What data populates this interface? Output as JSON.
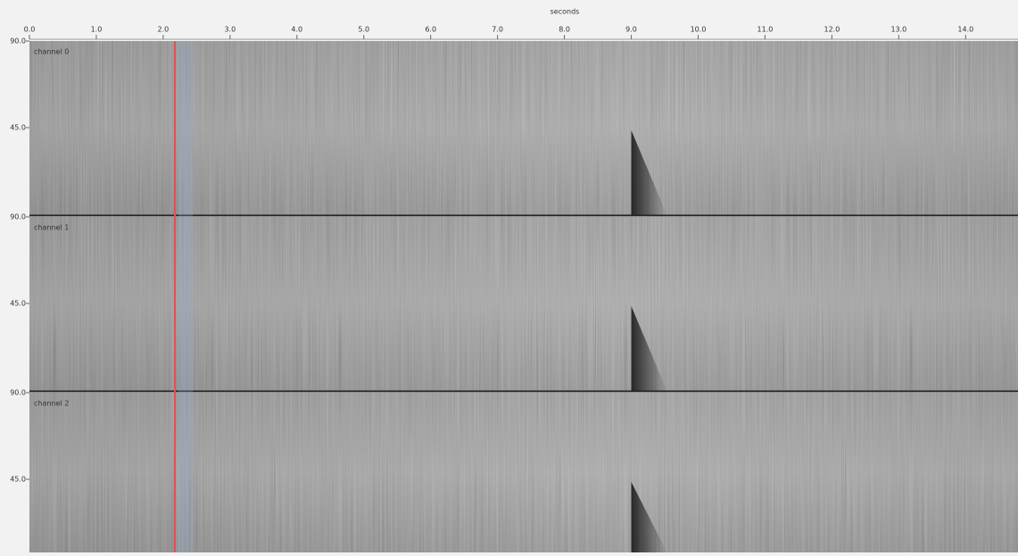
{
  "axis": {
    "title": "seconds",
    "ticks": [
      "0.0",
      "1.0",
      "2.0",
      "3.0",
      "4.0",
      "5.0",
      "6.0",
      "7.0",
      "8.0",
      "9.0",
      "10.0",
      "11.0",
      "12.0",
      "13.0",
      "14.0"
    ]
  },
  "channels": [
    {
      "label": "channel 0",
      "y_ticks": [
        "90.0",
        "45.0"
      ]
    },
    {
      "label": "channel 1",
      "y_ticks": [
        "90.0",
        "45.0"
      ]
    },
    {
      "label": "channel 2",
      "y_ticks": [
        "90.0",
        "45.0"
      ]
    }
  ]
}
